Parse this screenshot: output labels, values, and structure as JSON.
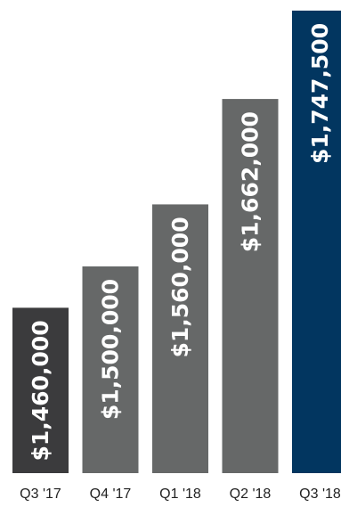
{
  "chart_data": {
    "type": "bar",
    "title": "",
    "xlabel": "",
    "ylabel": "",
    "categories": [
      "Q3 '17",
      "Q4 '17",
      "Q1 '18",
      "Q2 '18",
      "Q3 '18"
    ],
    "values": [
      1460000,
      1500000,
      1560000,
      1662000,
      1747500
    ],
    "value_labels": [
      "$1,460,000",
      "$1,500,000",
      "$1,560,000",
      "$1,662,000",
      "$1,747,500"
    ],
    "bar_colors": [
      "#3b3b3d",
      "#666868",
      "#666868",
      "#666868",
      "#023660"
    ],
    "label_color": "#ffffff",
    "ylim": [
      1300000,
      1750000
    ],
    "grid": false,
    "legend": "none"
  }
}
